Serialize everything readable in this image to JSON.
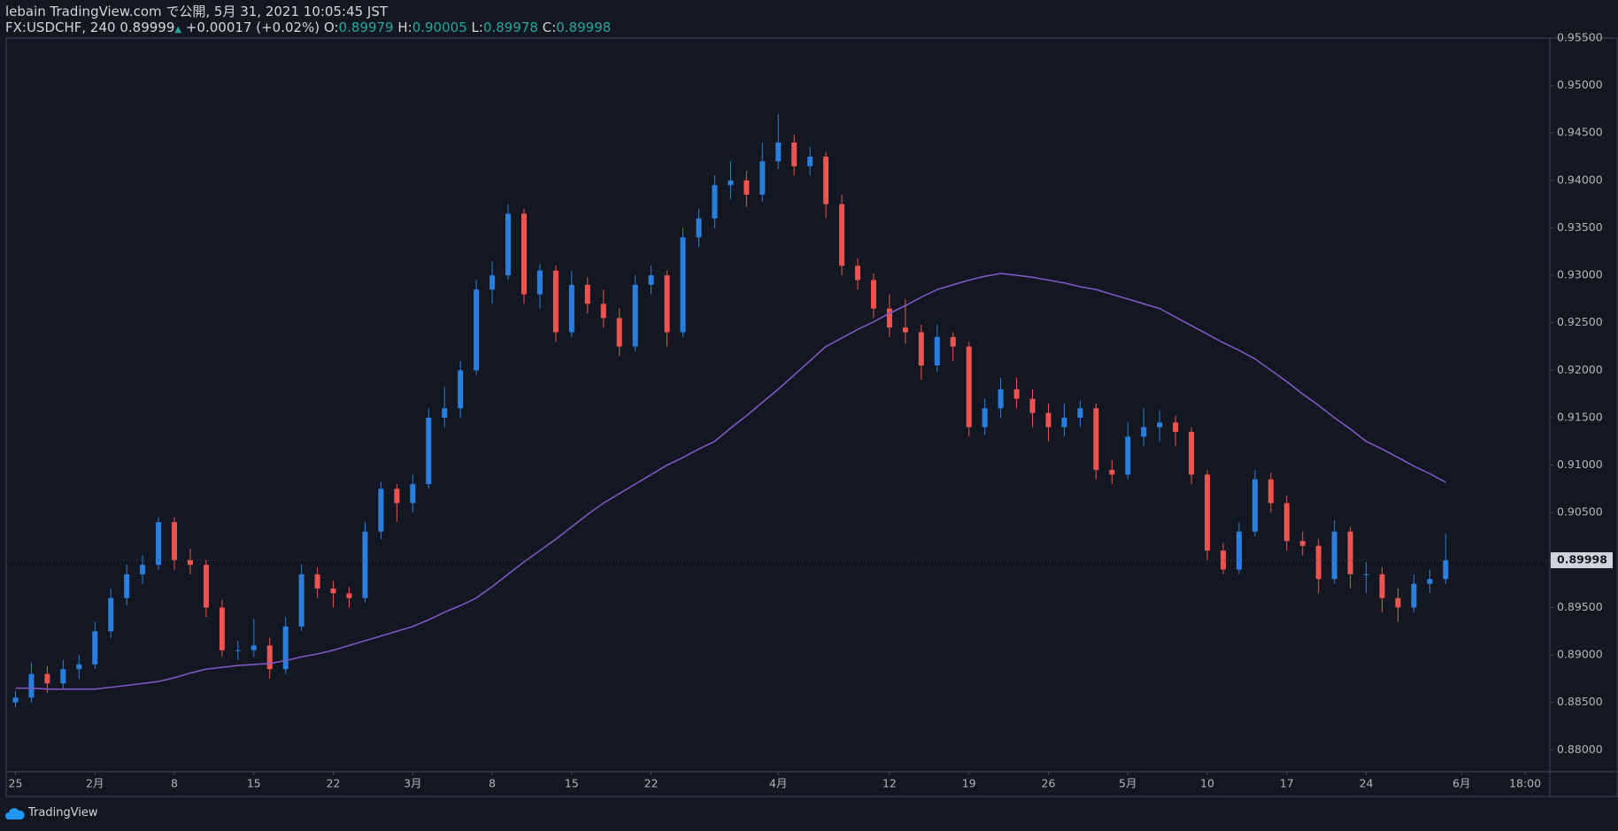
{
  "header": {
    "publisher": "lebain TradingView.com で公開, 5月 31, 2021 10:05:45 JST",
    "symbol": "FX:USDCHF, 240",
    "price": "0.89999",
    "arrow": "▲",
    "change": "+0.00017 (+0.02%)",
    "o_label": "O:",
    "open": "0.89979",
    "h_label": "H:",
    "high": "0.90005",
    "l_label": "L:",
    "low": "0.89978",
    "c_label": "C:",
    "close": "0.89998"
  },
  "footer": {
    "brand": "TradingView"
  },
  "chart_data": {
    "type": "candlestick",
    "categories": [
      "25",
      null,
      null,
      null,
      null,
      "2月",
      null,
      null,
      null,
      null,
      "8",
      null,
      null,
      null,
      null,
      "15",
      null,
      null,
      null,
      null,
      "22",
      null,
      null,
      null,
      null,
      "3月",
      null,
      null,
      null,
      null,
      "8",
      null,
      null,
      null,
      null,
      "15",
      null,
      null,
      null,
      null,
      "22",
      null,
      null,
      null,
      null,
      null,
      null,
      null,
      "4月",
      null,
      null,
      null,
      null,
      null,
      null,
      "12",
      null,
      null,
      null,
      null,
      "19",
      null,
      null,
      null,
      null,
      "26",
      null,
      null,
      null,
      null,
      "5月",
      null,
      null,
      null,
      null,
      "10",
      null,
      null,
      null,
      null,
      "17",
      null,
      null,
      null,
      null,
      "24",
      null,
      null,
      null,
      null,
      null,
      "6月",
      null,
      null,
      null,
      "18:00"
    ],
    "up_color": "#2a7fde",
    "down_color": "#ef5350",
    "ohlc": [
      [
        0.885,
        0.8862,
        0.8845,
        0.8855
      ],
      [
        0.8855,
        0.8892,
        0.885,
        0.888
      ],
      [
        0.888,
        0.8888,
        0.886,
        0.887
      ],
      [
        0.887,
        0.8895,
        0.8865,
        0.8885
      ],
      [
        0.8885,
        0.89,
        0.8875,
        0.889
      ],
      [
        0.889,
        0.8935,
        0.8885,
        0.8925
      ],
      [
        0.8925,
        0.897,
        0.8918,
        0.896
      ],
      [
        0.896,
        0.8995,
        0.8952,
        0.8985
      ],
      [
        0.8985,
        0.9005,
        0.8975,
        0.8995
      ],
      [
        0.8995,
        0.9045,
        0.899,
        0.904
      ],
      [
        0.904,
        0.9045,
        0.899,
        0.9
      ],
      [
        0.9,
        0.9012,
        0.8985,
        0.8995
      ],
      [
        0.8995,
        0.9,
        0.894,
        0.895
      ],
      [
        0.895,
        0.8958,
        0.8898,
        0.8905
      ],
      [
        0.8905,
        0.8915,
        0.8895,
        0.8905
      ],
      [
        0.8905,
        0.8938,
        0.8898,
        0.891
      ],
      [
        0.891,
        0.8918,
        0.8875,
        0.8885
      ],
      [
        0.8885,
        0.894,
        0.888,
        0.893
      ],
      [
        0.893,
        0.8995,
        0.8925,
        0.8985
      ],
      [
        0.8985,
        0.8992,
        0.896,
        0.897
      ],
      [
        0.897,
        0.8978,
        0.895,
        0.8965
      ],
      [
        0.8965,
        0.8972,
        0.895,
        0.896
      ],
      [
        0.896,
        0.904,
        0.8955,
        0.903
      ],
      [
        0.903,
        0.9082,
        0.9022,
        0.9075
      ],
      [
        0.9075,
        0.908,
        0.904,
        0.906
      ],
      [
        0.906,
        0.909,
        0.905,
        0.908
      ],
      [
        0.908,
        0.916,
        0.9075,
        0.915
      ],
      [
        0.915,
        0.9182,
        0.914,
        0.916
      ],
      [
        0.916,
        0.921,
        0.915,
        0.92
      ],
      [
        0.92,
        0.9295,
        0.9195,
        0.9285
      ],
      [
        0.9285,
        0.9315,
        0.927,
        0.93
      ],
      [
        0.93,
        0.9375,
        0.9295,
        0.9365
      ],
      [
        0.9365,
        0.937,
        0.927,
        0.928
      ],
      [
        0.928,
        0.9312,
        0.9265,
        0.9305
      ],
      [
        0.9305,
        0.931,
        0.923,
        0.924
      ],
      [
        0.924,
        0.9305,
        0.9235,
        0.929
      ],
      [
        0.929,
        0.9298,
        0.926,
        0.927
      ],
      [
        0.927,
        0.9285,
        0.9245,
        0.9255
      ],
      [
        0.9255,
        0.9265,
        0.9215,
        0.9225
      ],
      [
        0.9225,
        0.93,
        0.922,
        0.929
      ],
      [
        0.929,
        0.931,
        0.928,
        0.93
      ],
      [
        0.93,
        0.9305,
        0.9225,
        0.924
      ],
      [
        0.924,
        0.935,
        0.9235,
        0.934
      ],
      [
        0.934,
        0.937,
        0.933,
        0.936
      ],
      [
        0.936,
        0.9405,
        0.935,
        0.9395
      ],
      [
        0.9395,
        0.942,
        0.938,
        0.94
      ],
      [
        0.94,
        0.941,
        0.9372,
        0.9385
      ],
      [
        0.9385,
        0.944,
        0.9378,
        0.942
      ],
      [
        0.942,
        0.947,
        0.9412,
        0.944
      ],
      [
        0.944,
        0.9448,
        0.9405,
        0.9415
      ],
      [
        0.9415,
        0.9435,
        0.9405,
        0.9425
      ],
      [
        0.9425,
        0.943,
        0.936,
        0.9375
      ],
      [
        0.9375,
        0.9385,
        0.93,
        0.931
      ],
      [
        0.931,
        0.9318,
        0.9285,
        0.9295
      ],
      [
        0.9295,
        0.9302,
        0.9255,
        0.9265
      ],
      [
        0.9265,
        0.928,
        0.9235,
        0.9245
      ],
      [
        0.9245,
        0.9275,
        0.9228,
        0.924
      ],
      [
        0.924,
        0.9248,
        0.919,
        0.9205
      ],
      [
        0.9205,
        0.9248,
        0.9198,
        0.9235
      ],
      [
        0.9235,
        0.924,
        0.921,
        0.9225
      ],
      [
        0.9225,
        0.923,
        0.913,
        0.914
      ],
      [
        0.914,
        0.917,
        0.9132,
        0.916
      ],
      [
        0.916,
        0.9192,
        0.915,
        0.918
      ],
      [
        0.918,
        0.9192,
        0.916,
        0.917
      ],
      [
        0.917,
        0.918,
        0.914,
        0.9155
      ],
      [
        0.9155,
        0.9165,
        0.9125,
        0.914
      ],
      [
        0.914,
        0.9165,
        0.913,
        0.915
      ],
      [
        0.915,
        0.9168,
        0.914,
        0.916
      ],
      [
        0.916,
        0.9165,
        0.9085,
        0.9095
      ],
      [
        0.9095,
        0.9105,
        0.908,
        0.909
      ],
      [
        0.909,
        0.9145,
        0.9085,
        0.913
      ],
      [
        0.913,
        0.916,
        0.912,
        0.914
      ],
      [
        0.914,
        0.9158,
        0.9125,
        0.9145
      ],
      [
        0.9145,
        0.9152,
        0.912,
        0.9135
      ],
      [
        0.9135,
        0.914,
        0.908,
        0.909
      ],
      [
        0.909,
        0.9095,
        0.9,
        0.901
      ],
      [
        0.901,
        0.9018,
        0.8985,
        0.899
      ],
      [
        0.899,
        0.904,
        0.8985,
        0.903
      ],
      [
        0.903,
        0.9095,
        0.9025,
        0.9085
      ],
      [
        0.9085,
        0.9092,
        0.905,
        0.906
      ],
      [
        0.906,
        0.9068,
        0.901,
        0.902
      ],
      [
        0.902,
        0.903,
        0.9005,
        0.9015
      ],
      [
        0.9015,
        0.9022,
        0.8965,
        0.898
      ],
      [
        0.898,
        0.9042,
        0.8975,
        0.903
      ],
      [
        0.903,
        0.9035,
        0.897,
        0.8985
      ],
      [
        0.8985,
        0.8998,
        0.8965,
        0.8985
      ],
      [
        0.8985,
        0.8992,
        0.8945,
        0.896
      ],
      [
        0.896,
        0.897,
        0.8935,
        0.895
      ],
      [
        0.895,
        0.8985,
        0.8945,
        0.8975
      ],
      [
        0.8975,
        0.899,
        0.8965,
        0.898
      ],
      [
        0.898,
        0.9028,
        0.8975,
        0.89998
      ],
      null,
      null,
      null,
      null,
      null
    ],
    "moving_average": {
      "color": "#7e57c2",
      "values": [
        0.8865,
        0.8865,
        0.8864,
        0.8864,
        0.8864,
        0.8864,
        0.8866,
        0.8868,
        0.887,
        0.8872,
        0.8876,
        0.8881,
        0.8885,
        0.8887,
        0.8889,
        0.889,
        0.8891,
        0.8894,
        0.8898,
        0.8901,
        0.8905,
        0.891,
        0.8915,
        0.892,
        0.8925,
        0.893,
        0.8937,
        0.8945,
        0.8952,
        0.896,
        0.8972,
        0.8985,
        0.8998,
        0.901,
        0.9022,
        0.9035,
        0.9048,
        0.906,
        0.907,
        0.908,
        0.909,
        0.91,
        0.9108,
        0.9117,
        0.9125,
        0.9139,
        0.9152,
        0.9166,
        0.918,
        0.9195,
        0.921,
        0.9225,
        0.9234,
        0.9243,
        0.9251,
        0.926,
        0.9268,
        0.9277,
        0.9285,
        0.929,
        0.9295,
        0.9299,
        0.9302,
        0.93,
        0.9298,
        0.9295,
        0.9292,
        0.9288,
        0.9285,
        0.928,
        0.9275,
        0.927,
        0.9265,
        0.9256,
        0.9247,
        0.9238,
        0.9229,
        0.9221,
        0.9212,
        0.92,
        0.9188,
        0.9175,
        0.9163,
        0.915,
        0.9138,
        0.9125,
        0.9117,
        0.9108,
        0.9099,
        0.9091,
        0.9082,
        null,
        null,
        null,
        null,
        null
      ]
    },
    "last_price": 0.89998,
    "ylim": [
      0.8777,
      0.955
    ],
    "yticks": [
      {
        "value": 0.88,
        "label": "0.88000"
      },
      {
        "value": 0.885,
        "label": "0.88500"
      },
      {
        "value": 0.89,
        "label": "0.89000"
      },
      {
        "value": 0.895,
        "label": "0.89500"
      },
      {
        "value": 0.9,
        "label": "0.90000"
      },
      {
        "value": 0.905,
        "label": "0.90500"
      },
      {
        "value": 0.91,
        "label": "0.91000"
      },
      {
        "value": 0.915,
        "label": "0.91500"
      },
      {
        "value": 0.92,
        "label": "0.92000"
      },
      {
        "value": 0.925,
        "label": "0.92500"
      },
      {
        "value": 0.93,
        "label": "0.93000"
      },
      {
        "value": 0.935,
        "label": "0.93500"
      },
      {
        "value": 0.94,
        "label": "0.94000"
      },
      {
        "value": 0.945,
        "label": "0.94500"
      },
      {
        "value": 0.95,
        "label": "0.95000"
      },
      {
        "value": 0.955,
        "label": "0.95500"
      }
    ],
    "grid": false
  }
}
